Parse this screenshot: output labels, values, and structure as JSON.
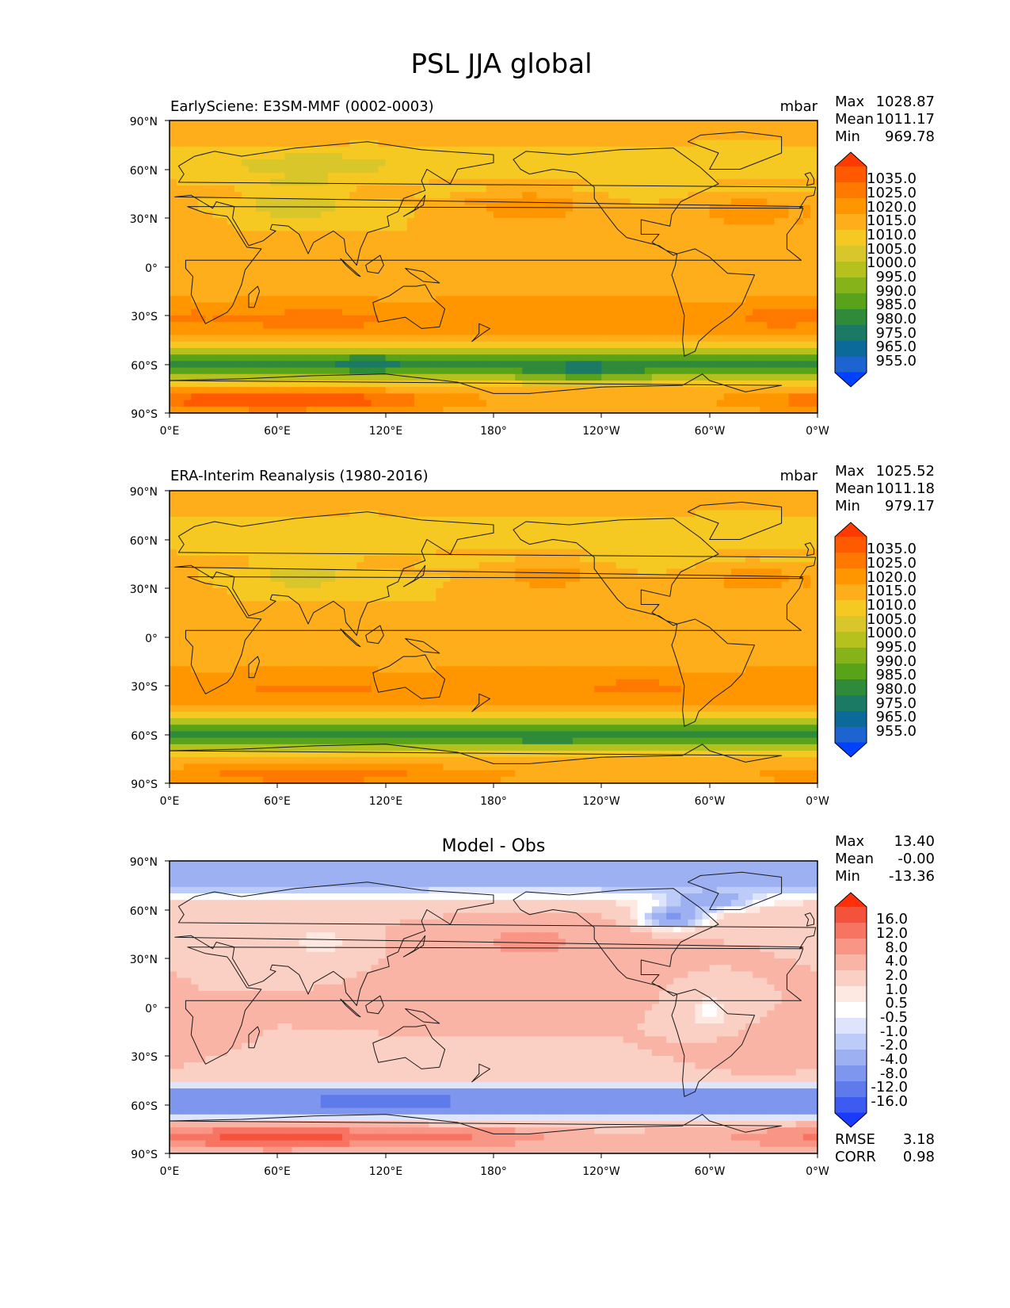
{
  "figure_title": "PSL JJA global",
  "chart_data": [
    {
      "type": "heatmap",
      "title": "EarlySciene: E3SM-MMF (0002-0003)",
      "units": "mbar",
      "stats": [
        {
          "label": "Max",
          "value": "1028.87"
        },
        {
          "label": "Mean",
          "value": "1011.17"
        },
        {
          "label": "Min",
          "value": "969.78"
        }
      ],
      "x_ticks": [
        "0°E",
        "60°E",
        "120°E",
        "180°",
        "120°W",
        "60°W",
        "0°W"
      ],
      "y_ticks": [
        "90°N",
        "60°N",
        "30°N",
        "0°",
        "30°S",
        "60°S",
        "90°S"
      ],
      "xlim": [
        0,
        360
      ],
      "ylim": [
        -90,
        90
      ],
      "colorbar_levels": [
        "1035.0",
        "1025.0",
        "1020.0",
        "1015.0",
        "1010.0",
        "1005.0",
        "1000.0",
        "995.0",
        "990.0",
        "985.0",
        "980.0",
        "975.0",
        "965.0",
        "955.0"
      ],
      "colorbar_colors": [
        "#ff3a00",
        "#ff5a00",
        "#ff7800",
        "#ff9600",
        "#fdae1a",
        "#f6c822",
        "#d8c62a",
        "#b5c21e",
        "#86b31a",
        "#58a31a",
        "#2f8a3a",
        "#1b7a64",
        "#0c6a9a",
        "#1e64d0",
        "#0040ff"
      ],
      "field": {
        "kind": "abs",
        "variant": 0
      }
    },
    {
      "type": "heatmap",
      "title": "ERA-Interim Reanalysis (1980-2016)",
      "units": "mbar",
      "stats": [
        {
          "label": "Max",
          "value": "1025.52"
        },
        {
          "label": "Mean",
          "value": "1011.18"
        },
        {
          "label": "Min",
          "value": "979.17"
        }
      ],
      "x_ticks": [
        "0°E",
        "60°E",
        "120°E",
        "180°",
        "120°W",
        "60°W",
        "0°W"
      ],
      "y_ticks": [
        "90°N",
        "60°N",
        "30°N",
        "0°",
        "30°S",
        "60°S",
        "90°S"
      ],
      "xlim": [
        0,
        360
      ],
      "ylim": [
        -90,
        90
      ],
      "colorbar_levels": [
        "1035.0",
        "1025.0",
        "1020.0",
        "1015.0",
        "1010.0",
        "1005.0",
        "1000.0",
        "995.0",
        "990.0",
        "985.0",
        "980.0",
        "975.0",
        "965.0",
        "955.0"
      ],
      "colorbar_colors": [
        "#ff3a00",
        "#ff5a00",
        "#ff7800",
        "#ff9600",
        "#fdae1a",
        "#f6c822",
        "#d8c62a",
        "#b5c21e",
        "#86b31a",
        "#58a31a",
        "#2f8a3a",
        "#1b7a64",
        "#0c6a9a",
        "#1e64d0",
        "#0040ff"
      ],
      "field": {
        "kind": "abs",
        "variant": 1
      }
    },
    {
      "type": "heatmap",
      "title": "Model - Obs",
      "units": "",
      "stats": [
        {
          "label": "Max",
          "value": "13.40"
        },
        {
          "label": "Mean",
          "value": "-0.00"
        },
        {
          "label": "Min",
          "value": "-13.36"
        }
      ],
      "footer_stats": [
        {
          "label": "RMSE",
          "value": "3.18"
        },
        {
          "label": "CORR",
          "value": "0.98"
        }
      ],
      "x_ticks": [
        "0°E",
        "60°E",
        "120°E",
        "180°",
        "120°W",
        "60°W",
        "0°W"
      ],
      "y_ticks": [
        "90°N",
        "60°N",
        "30°N",
        "0°",
        "30°S",
        "60°S",
        "90°S"
      ],
      "xlim": [
        0,
        360
      ],
      "ylim": [
        -90,
        90
      ],
      "colorbar_levels": [
        "16.0",
        "12.0",
        "8.0",
        "4.0",
        "2.0",
        "1.0",
        "0.5",
        "-0.5",
        "-1.0",
        "-2.0",
        "-4.0",
        "-8.0",
        "-12.0",
        "-16.0"
      ],
      "colorbar_colors": [
        "#ff2f0a",
        "#f5523c",
        "#f77463",
        "#f89585",
        "#f9b4a6",
        "#fbd0c4",
        "#fde9e1",
        "#ffffff",
        "#dde4fb",
        "#bccbf7",
        "#9db1f2",
        "#7e96ee",
        "#5f7aea",
        "#3d5bf0",
        "#1a3aff"
      ],
      "field": {
        "kind": "diff",
        "variant": 2
      }
    }
  ]
}
